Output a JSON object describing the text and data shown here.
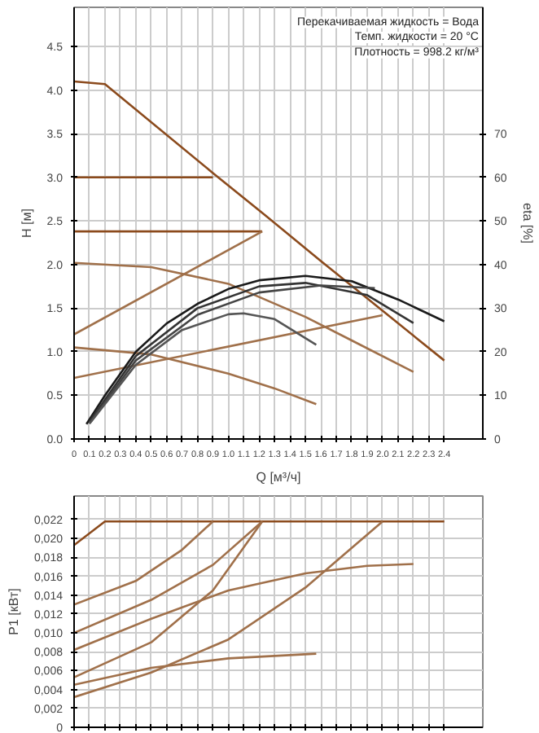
{
  "chart_data": [
    {
      "type": "line",
      "xlabel": "Q [м³/ч]",
      "ylabel": "H [м]",
      "y2label": "eta [%]",
      "xlim": [
        0,
        2.65
      ],
      "xticks": [
        0,
        0.1,
        0.2,
        0.3,
        0.4,
        0.5,
        0.6,
        0.7,
        0.8,
        0.9,
        {
          "value": 1,
          "label": "1.0"
        },
        1.1,
        1.2,
        1.3,
        1.4,
        1.5,
        1.6,
        1.7,
        1.8,
        1.9,
        {
          "value": 2,
          "label": "2.0"
        },
        2.1,
        2.2,
        2.3,
        2.4
      ],
      "ylim": [
        0,
        4.95
      ],
      "yticks": [
        {
          "value": 0,
          "label": "0.0"
        },
        0.5,
        {
          "value": 1,
          "label": "1.0"
        },
        1.5,
        {
          "value": 2,
          "label": "2.0"
        },
        2.5,
        {
          "value": 3,
          "label": "3.0"
        },
        3.5,
        {
          "value": 4,
          "label": "4.0"
        },
        4.5
      ],
      "y2lim": [
        0,
        99
      ],
      "y2ticks": [
        0,
        10,
        20,
        30,
        40,
        50,
        60,
        70
      ],
      "grid": true,
      "marker": "none",
      "line_style": "solid",
      "annotations": [
        "Перекачиваемая жидкость = Вода",
        "Темп. жидкости = 20 °C",
        "Плотность = 998.2 кг/м³"
      ],
      "series": [
        {
          "color": "#8b4a1c",
          "x": [
            0,
            0.2,
            0.9,
            1.25,
            1.6,
            2.0,
            2.4
          ],
          "values": [
            4.1,
            4.07,
            3.05,
            2.55,
            2.04,
            1.47,
            0.9
          ]
        },
        {
          "color": "#8b4a1c",
          "x": [
            0,
            0.9
          ],
          "values": [
            3.0,
            3.0
          ]
        },
        {
          "color": "#8b4a1c",
          "x": [
            0,
            1.22
          ],
          "values": [
            2.38,
            2.38
          ]
        },
        {
          "color": "#a0704a",
          "x": [
            0,
            1.22
          ],
          "values": [
            1.2,
            2.38
          ]
        },
        {
          "color": "#a0704a",
          "x": [
            0,
            2.0
          ],
          "values": [
            0.7,
            1.42
          ]
        },
        {
          "color": "#a0704a",
          "x": [
            0,
            0.5,
            1.0,
            1.5,
            1.8,
            2.2
          ],
          "values": [
            2.02,
            1.97,
            1.78,
            1.4,
            1.13,
            0.77
          ]
        },
        {
          "color": "#a0704a",
          "x": [
            0,
            0.5,
            1.0,
            1.3,
            1.57
          ],
          "values": [
            1.05,
            0.97,
            0.75,
            0.58,
            0.4
          ]
        },
        {
          "color": "#1a1a1a",
          "axis": "y2",
          "x": [
            0.08,
            0.2,
            0.4,
            0.6,
            0.8,
            1.0,
            1.2,
            1.5,
            1.8,
            2.1,
            2.4
          ],
          "values": [
            3.4,
            10,
            20,
            26.5,
            31,
            34.4,
            36.4,
            37.4,
            36.2,
            32,
            27
          ]
        },
        {
          "color": "#333333",
          "axis": "y2",
          "x": [
            0.1,
            0.4,
            0.8,
            1.2,
            1.5,
            1.9,
            2.2
          ],
          "values": [
            4,
            19,
            30,
            35,
            35.8,
            33,
            26.6
          ]
        },
        {
          "color": "#444444",
          "axis": "y2",
          "x": [
            0.1,
            0.4,
            0.8,
            1.2,
            1.6,
            1.95
          ],
          "values": [
            3.6,
            18,
            28.5,
            33.6,
            35.2,
            34.6
          ]
        },
        {
          "color": "#555555",
          "axis": "y2",
          "x": [
            0.1,
            0.4,
            0.7,
            1.0,
            1.1,
            1.3,
            1.57
          ],
          "values": [
            3.5,
            17,
            25,
            28.6,
            28.8,
            27.5,
            21.6
          ]
        }
      ]
    },
    {
      "type": "line",
      "ylabel": "P1 [кВт]",
      "tick_labels": "y",
      "xlim": [
        0,
        2.65
      ],
      "xticks": [
        0,
        0.1,
        0.2,
        0.3,
        0.4,
        0.5,
        0.6,
        0.7,
        0.8,
        0.9,
        1.0,
        1.1,
        1.2,
        1.3,
        1.4,
        1.5,
        1.6,
        1.7,
        1.8,
        1.9,
        2.0,
        2.1,
        2.2,
        2.3,
        2.4
      ],
      "ylim": [
        0,
        0.0245
      ],
      "yticks": [
        0,
        {
          "value": 0.002,
          "label": "0,002"
        },
        {
          "value": 0.004,
          "label": "0,004"
        },
        {
          "value": 0.006,
          "label": "0,006"
        },
        {
          "value": 0.008,
          "label": "0,008"
        },
        {
          "value": 0.01,
          "label": "0,010"
        },
        {
          "value": 0.012,
          "label": "0,012"
        },
        {
          "value": 0.014,
          "label": "0,014"
        },
        {
          "value": 0.016,
          "label": "0,016"
        },
        {
          "value": 0.018,
          "label": "0,018"
        },
        {
          "value": 0.02,
          "label": "0,020"
        },
        {
          "value": 0.022,
          "label": "0,022"
        }
      ],
      "grid": true,
      "marker": "none",
      "line_style": "solid",
      "series": [
        {
          "color": "#8b4a1c",
          "x": [
            0,
            0.2,
            2.4
          ],
          "values": [
            0.0193,
            0.0218,
            0.0218
          ]
        },
        {
          "color": "#a0704a",
          "x": [
            0,
            0.4,
            0.7,
            0.9
          ],
          "values": [
            0.013,
            0.0155,
            0.0188,
            0.0218
          ]
        },
        {
          "color": "#a0704a",
          "x": [
            0,
            0.5,
            0.9,
            1.22
          ],
          "values": [
            0.01,
            0.0135,
            0.0172,
            0.0218
          ]
        },
        {
          "color": "#a0704a",
          "x": [
            0,
            0.5,
            0.9,
            1.22
          ],
          "values": [
            0.0053,
            0.009,
            0.0145,
            0.0218
          ]
        },
        {
          "color": "#a0704a",
          "x": [
            0,
            0.5,
            1.0,
            1.5,
            2.0
          ],
          "values": [
            0.0032,
            0.0058,
            0.0093,
            0.0148,
            0.0218
          ]
        },
        {
          "color": "#a0704a",
          "x": [
            0,
            0.5,
            1.0,
            1.5,
            1.9,
            2.2
          ],
          "values": [
            0.0082,
            0.0115,
            0.0145,
            0.0163,
            0.0171,
            0.0173
          ]
        },
        {
          "color": "#a0704a",
          "x": [
            0,
            0.5,
            1.0,
            1.57
          ],
          "values": [
            0.0045,
            0.0063,
            0.0073,
            0.0078
          ]
        }
      ]
    }
  ]
}
